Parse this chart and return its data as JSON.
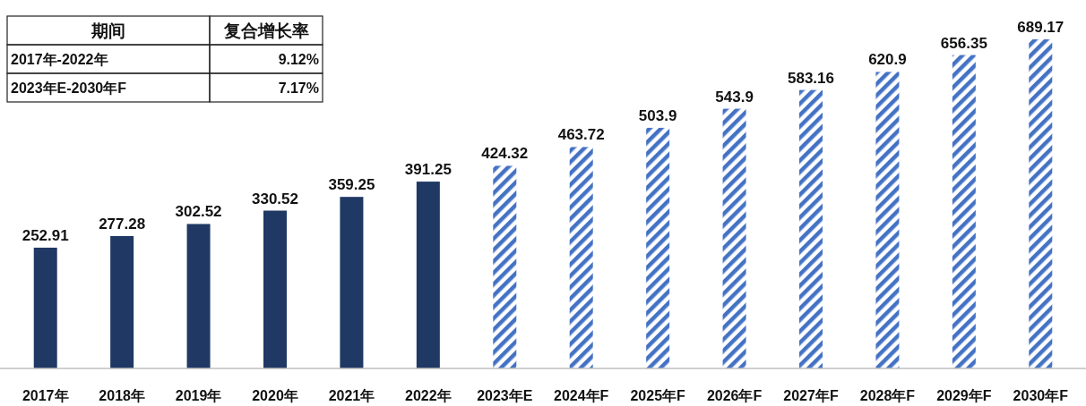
{
  "chart_data": {
    "type": "bar",
    "data_labels": true,
    "categories": [
      "2017年",
      "2018年",
      "2019年",
      "2020年",
      "2021年",
      "2022年",
      "2023年E",
      "2024年F",
      "2025年F",
      "2026年F",
      "2027年F",
      "2028年F",
      "2029年F",
      "2030年F"
    ],
    "series": [
      {
        "color": "#1f3864",
        "values": [
          252.91,
          277.28,
          302.52,
          330.52,
          359.25,
          391.25,
          null,
          null,
          null,
          null,
          null,
          null,
          null,
          null
        ]
      },
      {
        "color": "#4472c4",
        "values": [
          null,
          null,
          null,
          null,
          null,
          null,
          424.32,
          463.72,
          503.9,
          543.9,
          583.16,
          620.9,
          656.35,
          689.17
        ]
      }
    ],
    "annotations": [
      "期间",
      "复合增长率",
      "2017年-2022年",
      "9.12%",
      "2023年E-2030年F",
      "7.17%"
    ]
  }
}
